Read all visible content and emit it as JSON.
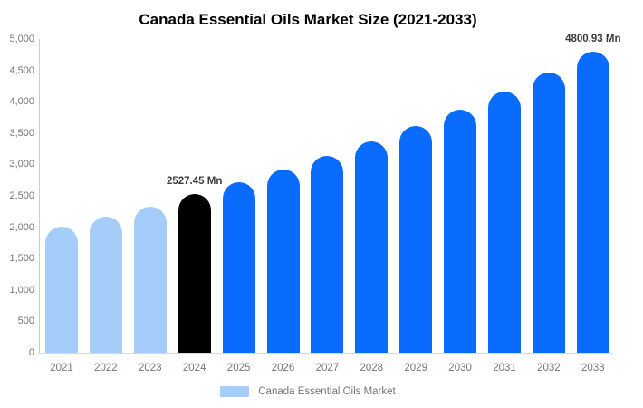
{
  "title": "Canada Essential Oils Market Size (2021-2033)",
  "legend": {
    "label": "Canada Essential Oils Market",
    "swatch_color": "#a4cdf9"
  },
  "colors": {
    "historical_bar": "#a4cdf9",
    "base_year_bar": "#000000",
    "forecast_bar": "#0a6cff",
    "axis_line": "#cccccc",
    "tick_text": "#757575",
    "data_label_text": "#3b3b3b",
    "title_text": "#000000"
  },
  "chart_data": {
    "type": "bar",
    "title": "Canada Essential Oils Market Size (2021-2033)",
    "xlabel": "",
    "ylabel": "",
    "unit": "Mn",
    "ylim": [
      0,
      5000
    ],
    "grid": false,
    "legend_position": "bottom",
    "categories": [
      "2021",
      "2022",
      "2023",
      "2024",
      "2025",
      "2026",
      "2027",
      "2028",
      "2029",
      "2030",
      "2031",
      "2032",
      "2033"
    ],
    "values": [
      2010,
      2170,
      2330,
      2527.45,
      2715,
      2915,
      3130,
      3360,
      3610,
      3875,
      4160,
      4470,
      4800.93
    ],
    "bar_colors": [
      "#a4cdf9",
      "#a4cdf9",
      "#a4cdf9",
      "#000000",
      "#0a6cff",
      "#0a6cff",
      "#0a6cff",
      "#0a6cff",
      "#0a6cff",
      "#0a6cff",
      "#0a6cff",
      "#0a6cff",
      "#0a6cff"
    ],
    "point_labels": [
      "",
      "",
      "",
      "2527.45 Mn",
      "",
      "",
      "",
      "",
      "",
      "",
      "",
      "",
      "4800.93 Mn"
    ],
    "y_ticks": [
      {
        "label": "0",
        "value": 0
      },
      {
        "label": "500",
        "value": 500
      },
      {
        "label": "1,000",
        "value": 1000
      },
      {
        "label": "1,500",
        "value": 1500
      },
      {
        "label": "2,000",
        "value": 2000
      },
      {
        "label": "2,500",
        "value": 2500
      },
      {
        "label": "3,000",
        "value": 3000
      },
      {
        "label": "3,500",
        "value": 3500
      },
      {
        "label": "4,000",
        "value": 4000
      },
      {
        "label": "4,500",
        "value": 4500
      },
      {
        "label": "5,000",
        "value": 5000
      }
    ],
    "series": [
      {
        "name": "Canada Essential Oils Market",
        "values": [
          2010,
          2170,
          2330,
          2527.45,
          2715,
          2915,
          3130,
          3360,
          3610,
          3875,
          4160,
          4470,
          4800.93
        ]
      }
    ]
  }
}
